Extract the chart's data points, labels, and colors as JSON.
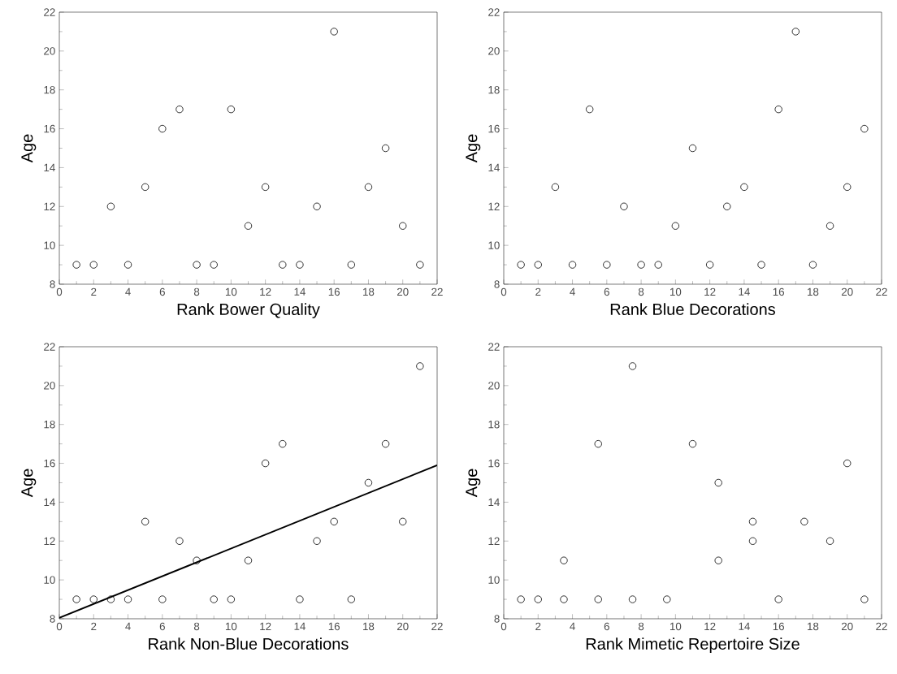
{
  "chart_data": [
    {
      "type": "scatter",
      "xlabel": "Rank Bower Quality",
      "ylabel": "Age",
      "xlim": [
        0,
        22
      ],
      "ylim": [
        8,
        22
      ],
      "xticks": [
        0,
        2,
        4,
        6,
        8,
        10,
        12,
        14,
        16,
        18,
        20,
        22
      ],
      "yticks": [
        8,
        10,
        12,
        14,
        16,
        18,
        20,
        22
      ],
      "grid": false,
      "series": [
        {
          "color": "#000000",
          "marker": "circle",
          "x": [
            1,
            2,
            3,
            4,
            5,
            6,
            7,
            8,
            9,
            10,
            11,
            12,
            13,
            14,
            15,
            16,
            17,
            18,
            19,
            20,
            21
          ],
          "values": [
            9,
            9,
            12,
            9,
            13,
            16,
            17,
            9,
            9,
            17,
            11,
            13,
            9,
            9,
            12,
            21,
            9,
            13,
            15,
            11,
            9
          ]
        }
      ]
    },
    {
      "type": "scatter",
      "xlabel": "Rank Blue Decorations",
      "ylabel": "Age",
      "xlim": [
        0,
        22
      ],
      "ylim": [
        8,
        22
      ],
      "xticks": [
        0,
        2,
        4,
        6,
        8,
        10,
        12,
        14,
        16,
        18,
        20,
        22
      ],
      "yticks": [
        8,
        10,
        12,
        14,
        16,
        18,
        20,
        22
      ],
      "grid": false,
      "series": [
        {
          "color": "#000000",
          "marker": "circle",
          "x": [
            1,
            2,
            3,
            4,
            5,
            6,
            7,
            8,
            9,
            10,
            11,
            12,
            13,
            14,
            15,
            16,
            17,
            18,
            19,
            20,
            21
          ],
          "values": [
            9,
            9,
            13,
            9,
            17,
            9,
            12,
            9,
            9,
            11,
            15,
            9,
            12,
            13,
            9,
            17,
            21,
            9,
            11,
            13,
            16
          ]
        }
      ]
    },
    {
      "type": "scatter",
      "xlabel": "Rank Non-Blue Decorations",
      "ylabel": "Age",
      "xlim": [
        0,
        22
      ],
      "ylim": [
        8,
        22
      ],
      "xticks": [
        0,
        2,
        4,
        6,
        8,
        10,
        12,
        14,
        16,
        18,
        20,
        22
      ],
      "yticks": [
        8,
        10,
        12,
        14,
        16,
        18,
        20,
        22
      ],
      "grid": false,
      "series": [
        {
          "color": "#000000",
          "marker": "circle",
          "x": [
            1,
            2,
            3,
            4,
            5,
            6,
            7,
            8,
            9,
            10,
            11,
            12,
            13,
            14,
            15,
            16,
            17,
            18,
            19,
            20,
            21
          ],
          "values": [
            9,
            9,
            9,
            9,
            13,
            9,
            12,
            11,
            9,
            9,
            11,
            16,
            17,
            9,
            12,
            13,
            9,
            15,
            17,
            13,
            21
          ]
        },
        {
          "type": "line",
          "color": "#000000",
          "marker": "none",
          "line_style": "solid",
          "x": [
            0,
            22
          ],
          "values": [
            8.05,
            15.9
          ]
        }
      ]
    },
    {
      "type": "scatter",
      "xlabel": "Rank Mimetic Repertoire Size",
      "ylabel": "Age",
      "xlim": [
        0,
        22
      ],
      "ylim": [
        8,
        22
      ],
      "xticks": [
        0,
        2,
        4,
        6,
        8,
        10,
        12,
        14,
        16,
        18,
        20,
        22
      ],
      "yticks": [
        8,
        10,
        12,
        14,
        16,
        18,
        20,
        22
      ],
      "grid": false,
      "series": [
        {
          "color": "#000000",
          "marker": "circle",
          "x": [
            1,
            2,
            3.5,
            3.5,
            5.5,
            5.5,
            7.5,
            7.5,
            9.5,
            11,
            12.5,
            12.5,
            14.5,
            14.5,
            16,
            17.5,
            19,
            20,
            21
          ],
          "values": [
            9,
            9,
            11,
            9,
            17,
            9,
            21,
            9,
            9,
            17,
            15,
            11,
            13,
            12,
            9,
            13,
            12,
            16,
            9
          ]
        }
      ]
    }
  ]
}
